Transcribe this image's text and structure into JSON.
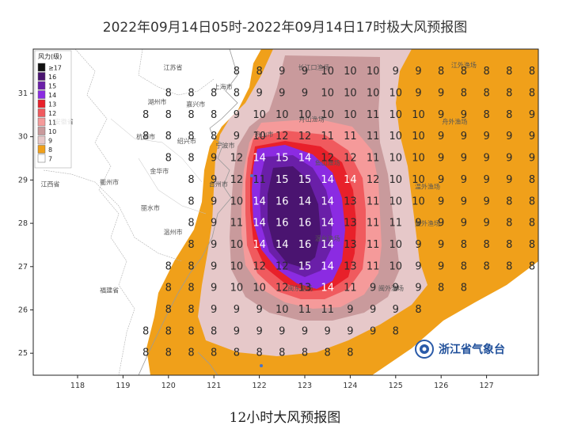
{
  "title": "2022年09月14日05时-2022年09月14日17时极大风预报图",
  "caption": "12小时大风预报图",
  "logo_text": "浙江省气象台",
  "legend": {
    "title": "风力(级)",
    "items": [
      {
        "label": "≥17",
        "color": "#111111"
      },
      {
        "label": "16",
        "color": "#4a1470"
      },
      {
        "label": "15",
        "color": "#6a1fa8"
      },
      {
        "label": "14",
        "color": "#8b2be2"
      },
      {
        "label": "13",
        "color": "#e8202a"
      },
      {
        "label": "12",
        "color": "#f05a5e"
      },
      {
        "label": "11",
        "color": "#f59a9a"
      },
      {
        "label": "10",
        "color": "#c99a9c"
      },
      {
        "label": "9",
        "color": "#e6c8c9"
      },
      {
        "label": "8",
        "color": "#f0a01a"
      },
      {
        "label": "7",
        "color": "#ffffff"
      }
    ]
  },
  "axes": {
    "lon_ticks": [
      "118",
      "119",
      "120",
      "121",
      "122",
      "123",
      "124",
      "125",
      "126",
      "127"
    ],
    "lat_ticks": [
      "31",
      "30",
      "29",
      "28",
      "27",
      "26",
      "25"
    ]
  },
  "places": [
    {
      "name": "江苏省",
      "lon": 120.1,
      "lat": 31.55
    },
    {
      "name": "上海市",
      "lon": 121.2,
      "lat": 31.1
    },
    {
      "name": "湖州市",
      "lon": 119.75,
      "lat": 30.75
    },
    {
      "name": "嘉兴市",
      "lon": 120.6,
      "lat": 30.7
    },
    {
      "name": "安徽省",
      "lon": 117.7,
      "lat": 30.3
    },
    {
      "name": "杭州市",
      "lon": 119.5,
      "lat": 29.95
    },
    {
      "name": "绍兴市",
      "lon": 120.4,
      "lat": 29.85
    },
    {
      "name": "宁波市",
      "lon": 121.25,
      "lat": 29.75
    },
    {
      "name": "舟山市",
      "lon": 122.1,
      "lat": 30.0
    },
    {
      "name": "金华市",
      "lon": 119.8,
      "lat": 29.15
    },
    {
      "name": "衢州市",
      "lon": 118.7,
      "lat": 28.9
    },
    {
      "name": "江西省",
      "lon": 117.4,
      "lat": 28.85
    },
    {
      "name": "台州市",
      "lon": 121.1,
      "lat": 28.85
    },
    {
      "name": "丽水市",
      "lon": 119.6,
      "lat": 28.3
    },
    {
      "name": "温州市",
      "lon": 120.1,
      "lat": 27.75
    },
    {
      "name": "福建省",
      "lon": 118.7,
      "lat": 26.4
    },
    {
      "name": "长江口渔场",
      "lon": 123.2,
      "lat": 31.55
    },
    {
      "name": "舟山渔场",
      "lon": 123.15,
      "lat": 30.35
    },
    {
      "name": "江外渔场",
      "lon": 126.5,
      "lat": 31.6
    },
    {
      "name": "舟外渔场",
      "lon": 126.3,
      "lat": 30.3
    },
    {
      "name": "鱼山渔场",
      "lon": 123.5,
      "lat": 29.35
    },
    {
      "name": "温外渔场",
      "lon": 125.7,
      "lat": 28.8
    },
    {
      "name": "鱼外渔场",
      "lon": 125.7,
      "lat": 27.95
    },
    {
      "name": "闽东渔场",
      "lon": 122.9,
      "lat": 26.45
    },
    {
      "name": "闽外渔场",
      "lon": 124.9,
      "lat": 26.45
    },
    {
      "name": "温台渔场",
      "lon": 123.5,
      "lat": 27.6
    }
  ],
  "grid": {
    "lon_start": 119.5,
    "lon_step": 0.5,
    "lat_start": 31.5,
    "lat_step": -0.5,
    "rows": [
      [
        null,
        null,
        null,
        null,
        8,
        8,
        9,
        9,
        10,
        10,
        10,
        9,
        9,
        8,
        8,
        8,
        8,
        8
      ],
      [
        null,
        8,
        8,
        8,
        8,
        9,
        9,
        9,
        10,
        10,
        10,
        10,
        9,
        9,
        8,
        8,
        8,
        8
      ],
      [
        8,
        8,
        8,
        8,
        9,
        10,
        10,
        10,
        10,
        10,
        11,
        10,
        10,
        9,
        9,
        8,
        8,
        9
      ],
      [
        8,
        8,
        8,
        8,
        9,
        10,
        12,
        12,
        11,
        11,
        11,
        10,
        10,
        9,
        9,
        9,
        9,
        9
      ],
      [
        null,
        8,
        8,
        9,
        12,
        14,
        15,
        14,
        12,
        12,
        11,
        10,
        10,
        9,
        9,
        9,
        9,
        9
      ],
      [
        null,
        null,
        8,
        9,
        12,
        11,
        15,
        15,
        14,
        14,
        12,
        10,
        10,
        9,
        9,
        9,
        9,
        8
      ],
      [
        null,
        null,
        8,
        9,
        10,
        14,
        16,
        14,
        14,
        13,
        11,
        10,
        10,
        9,
        9,
        9,
        8,
        8
      ],
      [
        null,
        null,
        8,
        9,
        11,
        14,
        16,
        16,
        14,
        13,
        11,
        11,
        9,
        9,
        9,
        9,
        8,
        8
      ],
      [
        null,
        null,
        8,
        9,
        10,
        14,
        14,
        16,
        14,
        13,
        11,
        10,
        9,
        9,
        8,
        8,
        8,
        8
      ],
      [
        null,
        8,
        8,
        9,
        10,
        12,
        12,
        15,
        14,
        13,
        11,
        10,
        9,
        9,
        8,
        8,
        8,
        8
      ],
      [
        null,
        8,
        8,
        9,
        10,
        10,
        12,
        13,
        14,
        11,
        9,
        9,
        9,
        8,
        8,
        null,
        null,
        null
      ],
      [
        null,
        8,
        8,
        9,
        9,
        9,
        10,
        11,
        11,
        9,
        9,
        9,
        8,
        null,
        null,
        null,
        null,
        null
      ],
      [
        8,
        8,
        8,
        8,
        9,
        9,
        9,
        9,
        9,
        9,
        9,
        8,
        null,
        null,
        null,
        null,
        null,
        null
      ],
      [
        8,
        8,
        8,
        8,
        8,
        8,
        8,
        8,
        8,
        8,
        null,
        null,
        null,
        null,
        null,
        null,
        null,
        null
      ]
    ]
  }
}
